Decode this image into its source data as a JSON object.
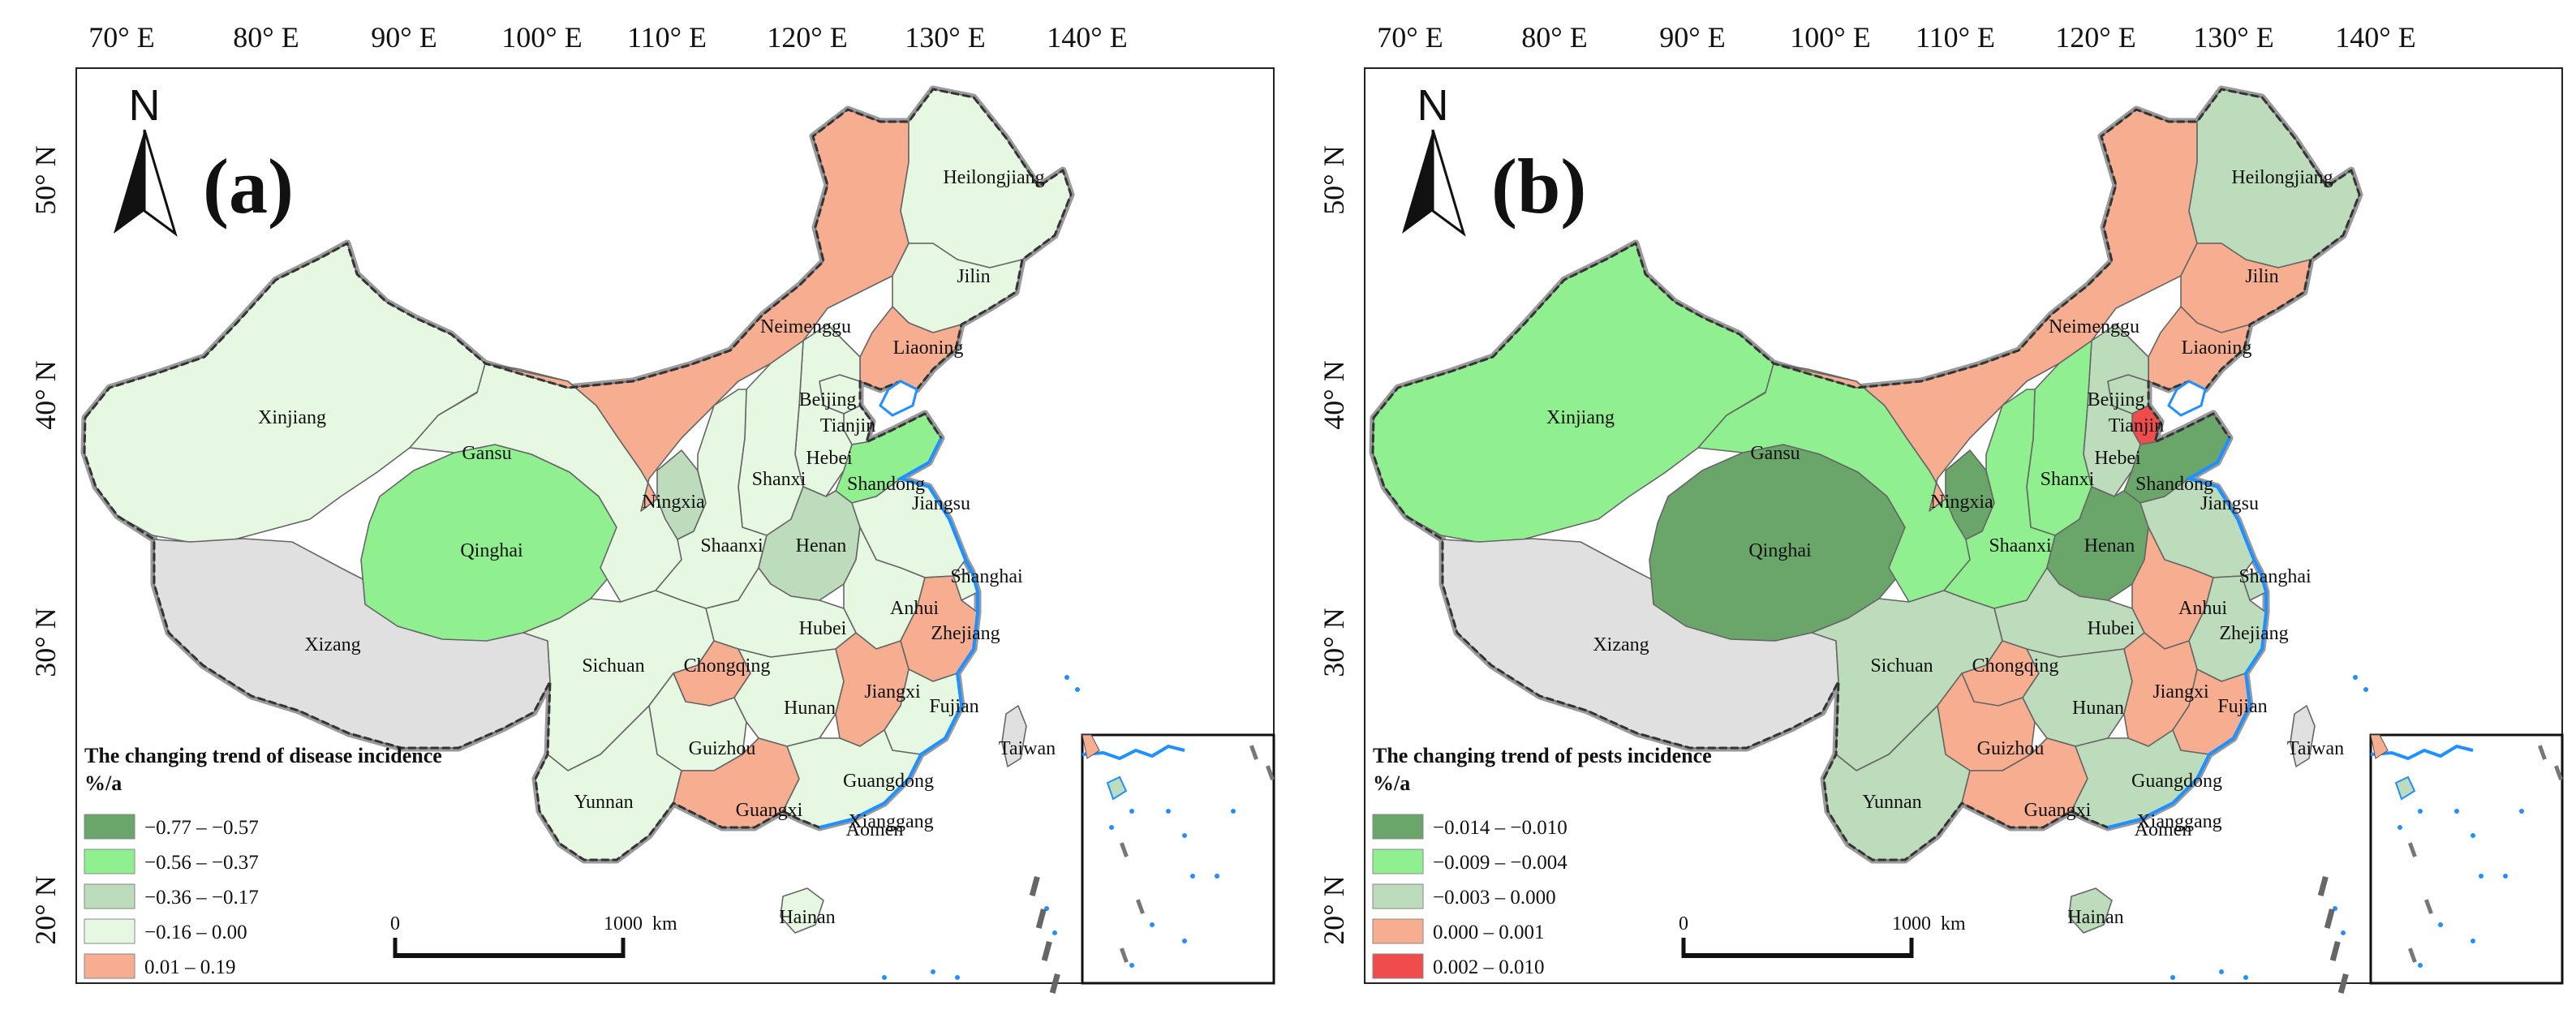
{
  "lon_labels": [
    "70° E",
    "80° E",
    "90° E",
    "100° E",
    "110° E",
    "120° E",
    "130° E",
    "140° E"
  ],
  "lat_labels": [
    "50° N",
    "40° N",
    "30° N",
    "20° N"
  ],
  "north_letter": "N",
  "province_labels": {
    "heilongjiang": "Heilongjiang",
    "jilin": "Jilin",
    "liaoning": "Liaoning",
    "neimenggu": "Neimenggu",
    "beijing": "Beijing",
    "tianjin": "Tianjin",
    "hebei": "Hebei",
    "shanxi": "Shanxi",
    "shandong": "Shandong",
    "ningxia": "Ningxia",
    "gansu": "Gansu",
    "xinjiang": "Xinjiang",
    "qinghai": "Qinghai",
    "xizang": "Xizang",
    "shaanxi": "Shaanxi",
    "henan": "Henan",
    "jiangsu": "Jiangsu",
    "shanghai": "Shanghai",
    "anhui": "Anhui",
    "hubei": "Hubei",
    "zhejiang": "Zhejiang",
    "sichuan": "Sichuan",
    "chongqing": "Chongqing",
    "jiangxi": "Jiangxi",
    "hunan": "Hunan",
    "fujian": "Fujian",
    "taiwan": "Taiwan",
    "guizhou": "Guizhou",
    "yunnan": "Yunnan",
    "guangxi": "Guangxi",
    "guangdong": "Guangdong",
    "xianggang": "Xianggang",
    "aomen": "Aomen",
    "hainan": "Hainan"
  },
  "scale_bar": {
    "start": "0",
    "end": "1000",
    "unit": "km"
  },
  "panels": [
    {
      "label": "(a)",
      "legend_title": "The changing trend of disease incidence",
      "legend_unit": "%/a",
      "legend_items": [
        {
          "label": "−0.77 – −0.57",
          "color": "#6aa56a"
        },
        {
          "label": "−0.56 – −0.37",
          "color": "#90f090"
        },
        {
          "label": "−0.36 – −0.17",
          "color": "#bcdcbc"
        },
        {
          "label": "−0.16 – 0.00",
          "color": "#e6f7e2"
        },
        {
          "label": "0.01 – 0.19",
          "color": "#f7ae90"
        }
      ],
      "province_class": {
        "xinjiang": 3,
        "xizang": -1,
        "qinghai": 1,
        "gansu": 3,
        "neimenggu": 4,
        "heilongjiang": 3,
        "jilin": 3,
        "liaoning": 4,
        "ningxia": 2,
        "shaanxi": 3,
        "shanxi": 3,
        "hebei": 3,
        "beijing": 3,
        "tianjin": 3,
        "shandong": 1,
        "henan": 2,
        "jiangsu": 3,
        "shanghai": 3,
        "anhui": 3,
        "zhejiang": 4,
        "hubei": 3,
        "sichuan": 3,
        "chongqing": 4,
        "guizhou": 3,
        "yunnan": 3,
        "hunan": 3,
        "jiangxi": 4,
        "fujian": 3,
        "guangxi": 4,
        "guangdong": 3,
        "hainan": 3,
        "taiwan": -1
      }
    },
    {
      "label": "(b)",
      "legend_title": "The changing trend of pests incidence",
      "legend_unit": "%/a",
      "legend_items": [
        {
          "label": "−0.014 – −0.010",
          "color": "#6aa56a"
        },
        {
          "label": "−0.009 – −0.004",
          "color": "#90f090"
        },
        {
          "label": "−0.003 – 0.000",
          "color": "#bcdcbc"
        },
        {
          "label": "0.000 – 0.001",
          "color": "#f7ae90"
        },
        {
          "label": "0.002 – 0.010",
          "color": "#f04c4c"
        }
      ],
      "province_class": {
        "xinjiang": 1,
        "xizang": -1,
        "qinghai": 0,
        "gansu": 1,
        "neimenggu": 3,
        "heilongjiang": 2,
        "jilin": 3,
        "liaoning": 3,
        "ningxia": 0,
        "shaanxi": 1,
        "shanxi": 1,
        "hebei": 2,
        "beijing": 2,
        "tianjin": 4,
        "shandong": 0,
        "henan": 0,
        "jiangsu": 2,
        "shanghai": 2,
        "anhui": 3,
        "zhejiang": 2,
        "hubei": 2,
        "sichuan": 2,
        "chongqing": 3,
        "guizhou": 3,
        "yunnan": 2,
        "hunan": 2,
        "jiangxi": 3,
        "fujian": 3,
        "guangxi": 3,
        "guangdong": 2,
        "hainan": 2,
        "taiwan": -1
      }
    }
  ],
  "colors": {
    "no_data": "#e0e0e0",
    "water": "#1e90ff",
    "border": "#555555"
  }
}
